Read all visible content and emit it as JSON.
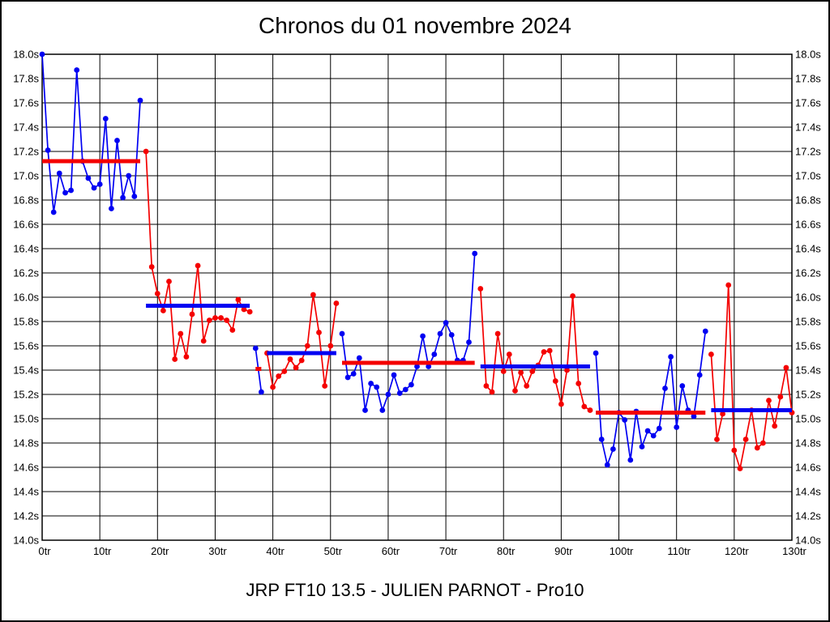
{
  "page": {
    "title": "Chronos du 01 novembre 2024",
    "subtitle": "JRP FT10 13.5 - JULIEN PARNOT - Pro10"
  },
  "chart_data": {
    "type": "line",
    "title": "Chronos du 01 novembre 2024",
    "subtitle": "JRP FT10 13.5 - JULIEN PARNOT - Pro10",
    "x_unit": "tr",
    "y_unit": "s",
    "xlim": [
      0,
      130
    ],
    "ylim": [
      14.0,
      18.0
    ],
    "x_tick_step": 10,
    "y_tick_step": 0.2,
    "grid": true,
    "legend_position": "none",
    "colors": {
      "blue": "#0000f2",
      "red": "#f40000",
      "grid": "#000000",
      "frame": "#000000",
      "background": "#ffffff"
    },
    "x_tick_labels": [
      "0tr",
      "10tr",
      "20tr",
      "30tr",
      "40tr",
      "50tr",
      "60tr",
      "70tr",
      "80tr",
      "90tr",
      "100tr",
      "110tr",
      "120tr",
      "130tr"
    ],
    "y_tick_labels": [
      "18.0s",
      "17.8s",
      "17.6s",
      "17.4s",
      "17.2s",
      "17.0s",
      "16.8s",
      "16.6s",
      "16.4s",
      "16.2s",
      "16.0s",
      "15.8s",
      "15.6s",
      "15.4s",
      "15.2s",
      "15.0s",
      "14.8s",
      "14.6s",
      "14.4s",
      "14.2s",
      "14.0s"
    ],
    "runs": [
      {
        "name": "run-1",
        "start_lap": 0,
        "dot_color": "blue",
        "avg_color": "red",
        "avg": 17.12,
        "values": [
          18.0,
          17.21,
          16.7,
          17.02,
          16.86,
          16.88,
          17.87,
          17.12,
          16.98,
          16.9,
          16.93,
          17.47,
          16.73,
          17.29,
          16.82,
          17.0,
          16.83,
          17.62
        ]
      },
      {
        "name": "run-2",
        "start_lap": 18,
        "dot_color": "red",
        "avg_color": "blue",
        "avg": 15.93,
        "values": [
          17.2,
          16.25,
          16.03,
          15.89,
          16.13,
          15.49,
          15.7,
          15.51,
          15.86,
          16.26,
          15.64,
          15.81,
          15.83,
          15.83,
          15.81,
          15.73,
          15.98,
          15.9,
          15.88
        ]
      },
      {
        "name": "run-3",
        "start_lap": 37,
        "dot_color": "blue",
        "avg_color": "red",
        "avg": 15.41,
        "values": [
          15.58,
          15.22
        ]
      },
      {
        "name": "run-4",
        "start_lap": 39,
        "dot_color": "red",
        "avg_color": "blue",
        "avg": 15.54,
        "values": [
          15.54,
          15.26,
          15.35,
          15.39,
          15.49,
          15.42,
          15.48,
          15.6,
          16.02,
          15.71,
          15.27,
          15.6,
          15.95
        ]
      },
      {
        "name": "run-5",
        "start_lap": 52,
        "dot_color": "blue",
        "avg_color": "red",
        "avg": 15.46,
        "values": [
          15.7,
          15.34,
          15.37,
          15.5,
          15.07,
          15.29,
          15.26,
          15.07,
          15.2,
          15.36,
          15.21,
          15.24,
          15.28,
          15.43,
          15.68,
          15.43,
          15.53,
          15.7,
          15.79,
          15.69,
          15.48,
          15.48,
          15.63,
          16.36
        ]
      },
      {
        "name": "run-6",
        "start_lap": 76,
        "dot_color": "red",
        "avg_color": "blue",
        "avg": 15.43,
        "values": [
          16.07,
          15.27,
          15.22,
          15.7,
          15.39,
          15.53,
          15.23,
          15.38,
          15.27,
          15.39,
          15.44,
          15.55,
          15.56,
          15.31,
          15.12,
          15.4,
          16.01,
          15.29,
          15.1,
          15.07
        ]
      },
      {
        "name": "run-7",
        "start_lap": 96,
        "dot_color": "blue",
        "avg_color": "red",
        "avg": 15.05,
        "values": [
          15.54,
          14.83,
          14.62,
          14.75,
          15.05,
          14.99,
          14.66,
          15.06,
          14.77,
          14.9,
          14.86,
          14.92,
          15.25,
          15.51,
          14.93,
          15.27,
          15.07,
          15.02,
          15.36,
          15.72
        ]
      },
      {
        "name": "run-8",
        "start_lap": 116,
        "dot_color": "red",
        "avg_color": "blue",
        "avg": 15.07,
        "values": [
          15.53,
          14.83,
          15.04,
          16.1,
          14.74,
          14.59,
          14.83,
          15.07,
          14.76,
          14.8,
          15.15,
          14.94,
          15.18,
          15.42,
          15.05
        ]
      }
    ]
  }
}
